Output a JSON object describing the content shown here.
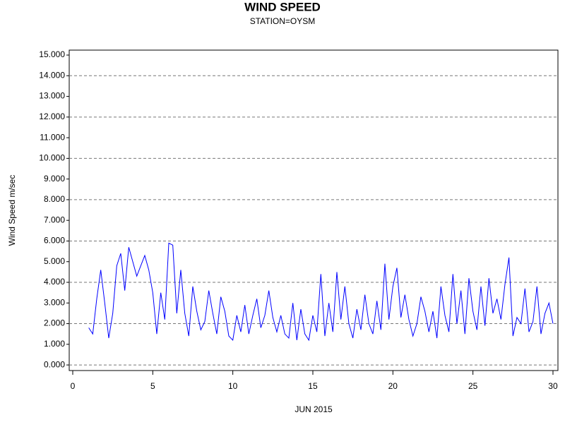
{
  "chart_data": {
    "type": "line",
    "title": "WIND SPEED",
    "subtitle": "STATION=OYSM",
    "y_label": "Wind Speed m/sec",
    "x_label": "JUN 2015",
    "x": [
      1,
      1.25,
      1.5,
      1.75,
      2,
      2.25,
      2.5,
      2.75,
      3,
      3.25,
      3.5,
      3.75,
      4,
      4.25,
      4.5,
      4.75,
      5,
      5.25,
      5.5,
      5.75,
      6,
      6.25,
      6.5,
      6.75,
      7,
      7.25,
      7.5,
      7.75,
      8,
      8.25,
      8.5,
      8.75,
      9,
      9.25,
      9.5,
      9.75,
      10,
      10.25,
      10.5,
      10.75,
      11,
      11.25,
      11.5,
      11.75,
      12,
      12.25,
      12.5,
      12.75,
      13,
      13.25,
      13.5,
      13.75,
      14,
      14.25,
      14.5,
      14.75,
      15,
      15.25,
      15.5,
      15.75,
      16,
      16.25,
      16.5,
      16.75,
      17,
      17.25,
      17.5,
      17.75,
      18,
      18.25,
      18.5,
      18.75,
      19,
      19.25,
      19.5,
      19.75,
      20,
      20.25,
      20.5,
      20.75,
      21,
      21.25,
      21.5,
      21.75,
      22,
      22.25,
      22.5,
      22.75,
      23,
      23.25,
      23.5,
      23.75,
      24,
      24.25,
      24.5,
      24.75,
      25,
      25.25,
      25.5,
      25.75,
      26,
      26.25,
      26.5,
      26.75,
      27,
      27.25,
      27.5,
      27.75,
      28,
      28.25,
      28.5,
      28.75,
      29,
      29.25,
      29.5,
      29.75,
      30
    ],
    "series": [
      {
        "name": "Wind Speed",
        "color": "#0000ff",
        "values": [
          1.8,
          1.5,
          3.2,
          4.6,
          3.0,
          1.3,
          2.5,
          4.8,
          5.4,
          3.6,
          5.7,
          5.0,
          4.3,
          4.8,
          5.3,
          4.6,
          3.5,
          1.5,
          3.5,
          2.2,
          5.9,
          5.8,
          2.5,
          4.6,
          2.5,
          1.4,
          3.8,
          2.6,
          1.7,
          2.1,
          3.6,
          2.5,
          1.5,
          3.3,
          2.6,
          1.4,
          1.2,
          2.4,
          1.6,
          2.9,
          1.5,
          2.4,
          3.2,
          1.8,
          2.4,
          3.6,
          2.3,
          1.6,
          2.4,
          1.5,
          1.3,
          3.0,
          1.2,
          2.7,
          1.5,
          1.2,
          2.4,
          1.6,
          4.4,
          1.4,
          3.0,
          1.6,
          4.5,
          2.2,
          3.8,
          2.0,
          1.3,
          2.7,
          1.7,
          3.4,
          2.0,
          1.5,
          3.1,
          1.7,
          4.9,
          2.2,
          3.8,
          4.7,
          2.3,
          3.4,
          2.2,
          1.4,
          2.0,
          3.3,
          2.6,
          1.6,
          2.6,
          1.3,
          3.8,
          2.4,
          1.6,
          4.4,
          2.0,
          3.6,
          1.5,
          4.2,
          2.6,
          1.7,
          3.8,
          1.9,
          4.2,
          2.5,
          3.2,
          2.2,
          3.9,
          5.2,
          1.4,
          2.3,
          2.0,
          3.7,
          1.6,
          2.1,
          3.8,
          1.5,
          2.5,
          3.0,
          2.0
        ]
      }
    ],
    "xlim": [
      -0.22,
      30.31
    ],
    "xticks": [
      0,
      5,
      10,
      15,
      20,
      25,
      30
    ],
    "ylim": [
      -0.27,
      15.24
    ],
    "yticks": [
      {
        "value": 0,
        "label": "0.000"
      },
      {
        "value": 1,
        "label": "1.000"
      },
      {
        "value": 2,
        "label": "2.000"
      },
      {
        "value": 3,
        "label": "3.000"
      },
      {
        "value": 4,
        "label": "4.000"
      },
      {
        "value": 5,
        "label": "5.000"
      },
      {
        "value": 6,
        "label": "6.000"
      },
      {
        "value": 7,
        "label": "7.000"
      },
      {
        "value": 8,
        "label": "8.000"
      },
      {
        "value": 9,
        "label": "9.000"
      },
      {
        "value": 10,
        "label": "10.000"
      },
      {
        "value": 11,
        "label": "11.000"
      },
      {
        "value": 12,
        "label": "12.000"
      },
      {
        "value": 13,
        "label": "13.000"
      },
      {
        "value": 14,
        "label": "14.000"
      },
      {
        "value": 15,
        "label": "15.000"
      }
    ],
    "grid": true
  }
}
